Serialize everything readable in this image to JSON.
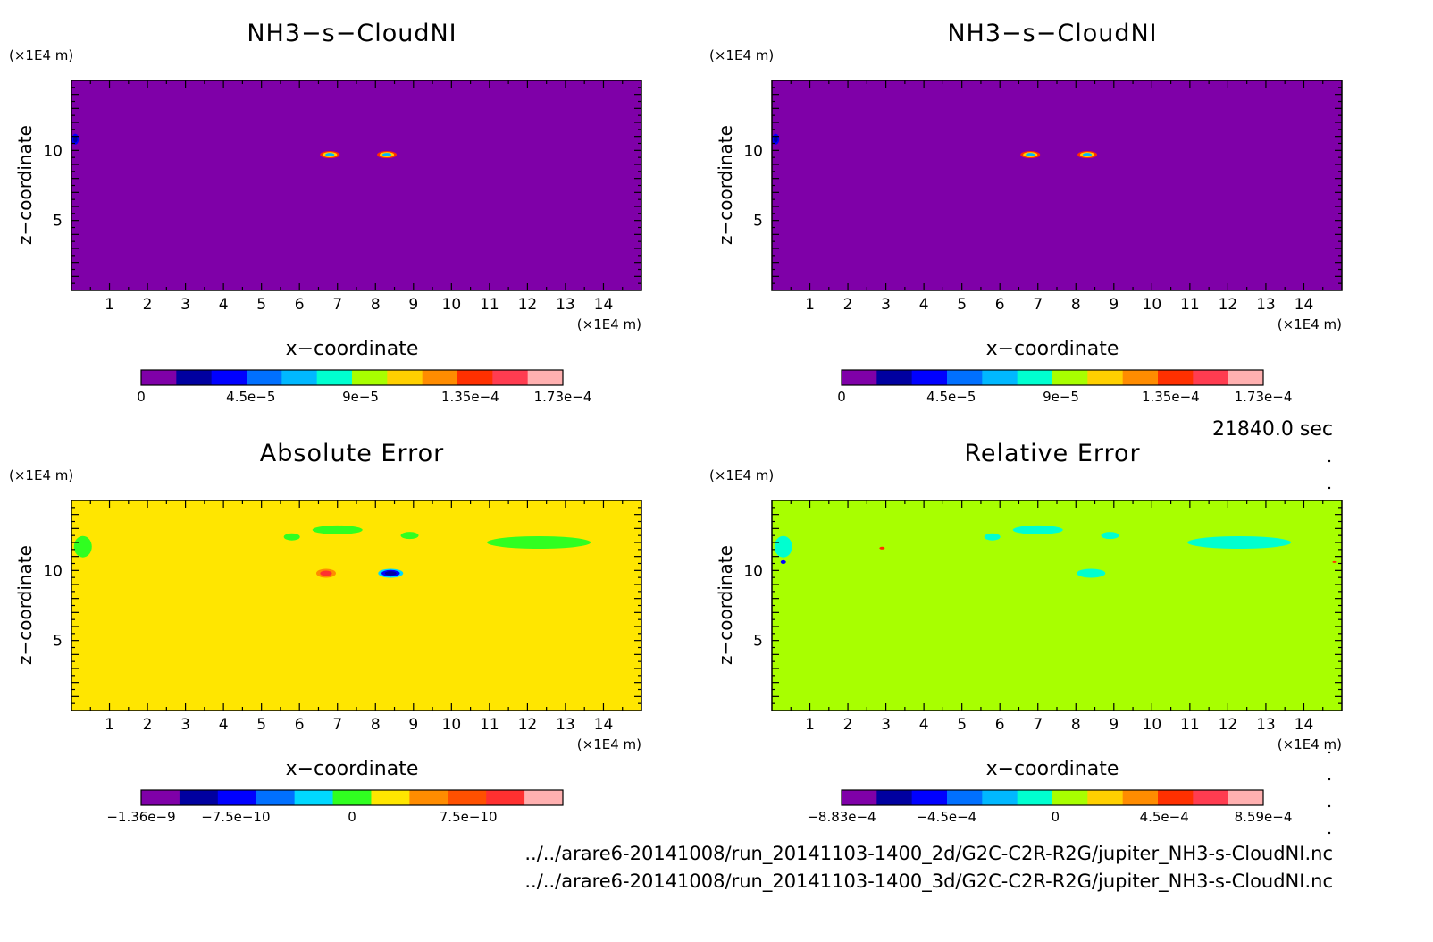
{
  "time_label": "21840.0 sec",
  "files": [
    "../../arare6-20141008/run_20141103-1400_2d/G2C-C2R-R2G/jupiter_NH3-s-CloudNI.nc",
    "../../arare6-20141008/run_20141103-1400_3d/G2C-C2R-R2G/jupiter_NH3-s-CloudNI.nc"
  ],
  "chart_data": [
    {
      "type": "heatmap",
      "title": "NH3−s−CloudNI",
      "xlabel": "x−coordinate",
      "ylabel": "z−coordinate",
      "x_unit": "(×1E4 m)",
      "y_unit": "(×1E4 m)",
      "xlim": [
        0,
        15
      ],
      "ylim": [
        0,
        15
      ],
      "x_ticks": [
        1,
        2,
        3,
        4,
        5,
        6,
        7,
        8,
        9,
        10,
        11,
        12,
        13,
        14
      ],
      "y_ticks": [
        5,
        10
      ],
      "background": "#7f00a8",
      "features": [
        {
          "x": 6.8,
          "z": 9.7,
          "value": 0.000173
        },
        {
          "x": 8.3,
          "z": 9.7,
          "value": 0.000173
        },
        {
          "x": 0.1,
          "z": 10.8,
          "value": 4.5e-05
        }
      ],
      "colorbar": {
        "min": 0,
        "max": 0.000173,
        "tick_labels": [
          "0",
          "4.5e−5",
          "9e−5",
          "1.35e−4",
          "1.73e−4"
        ],
        "tick_values": [
          0,
          4.5e-05,
          9e-05,
          0.000135,
          0.000173
        ],
        "colors": [
          "#7f00a8",
          "#0000a0",
          "#0000ff",
          "#0070ff",
          "#00b8ff",
          "#00ffd0",
          "#a8ff00",
          "#ffd000",
          "#ff8c00",
          "#ff3000",
          "#ff3c50",
          "#ffb0b0"
        ]
      }
    },
    {
      "type": "heatmap",
      "title": "NH3−s−CloudNI",
      "xlabel": "x−coordinate",
      "ylabel": "z−coordinate",
      "x_unit": "(×1E4 m)",
      "y_unit": "(×1E4 m)",
      "xlim": [
        0,
        15
      ],
      "ylim": [
        0,
        15
      ],
      "x_ticks": [
        1,
        2,
        3,
        4,
        5,
        6,
        7,
        8,
        9,
        10,
        11,
        12,
        13,
        14
      ],
      "y_ticks": [
        5,
        10
      ],
      "background": "#7f00a8",
      "features": [
        {
          "x": 6.8,
          "z": 9.7,
          "value": 0.000173
        },
        {
          "x": 8.3,
          "z": 9.7,
          "value": 0.000173
        },
        {
          "x": 0.1,
          "z": 10.8,
          "value": 4.5e-05
        }
      ],
      "colorbar": {
        "min": 0,
        "max": 0.000173,
        "tick_labels": [
          "0",
          "4.5e−5",
          "9e−5",
          "1.35e−4",
          "1.73e−4"
        ],
        "tick_values": [
          0,
          4.5e-05,
          9e-05,
          0.000135,
          0.000173
        ],
        "colors": [
          "#7f00a8",
          "#0000a0",
          "#0000ff",
          "#0070ff",
          "#00b8ff",
          "#00ffd0",
          "#a8ff00",
          "#ffd000",
          "#ff8c00",
          "#ff3000",
          "#ff3c50",
          "#ffb0b0"
        ]
      }
    },
    {
      "type": "heatmap",
      "title": "Absolute Error",
      "xlabel": "x−coordinate",
      "ylabel": "z−coordinate",
      "x_unit": "(×1E4 m)",
      "y_unit": "(×1E4 m)",
      "xlim": [
        0,
        15
      ],
      "ylim": [
        0,
        15
      ],
      "x_ticks": [
        1,
        2,
        3,
        4,
        5,
        6,
        7,
        8,
        9,
        10,
        11,
        12,
        13,
        14
      ],
      "y_ticks": [
        5,
        10
      ],
      "background": "#ffe600",
      "features": [
        {
          "x": 6.7,
          "z": 9.8,
          "value": 1.2e-09
        },
        {
          "x": 8.4,
          "z": 9.8,
          "value": -1.36e-09
        },
        {
          "x": 12.3,
          "z": 12.0,
          "value": -3e-10
        },
        {
          "x": 7.0,
          "z": 12.9,
          "value": -3e-10
        }
      ],
      "colorbar": {
        "min": -1.36e-09,
        "max": 1.36e-09,
        "tick_labels": [
          "−1.36e−9",
          "−7.5e−10",
          "0",
          "7.5e−10"
        ],
        "tick_values": [
          -1.36e-09,
          -7.5e-10,
          0,
          7.5e-10
        ],
        "colors": [
          "#7f00a8",
          "#0000a0",
          "#0000ff",
          "#0070ff",
          "#00d8ff",
          "#30ff20",
          "#ffe600",
          "#ff8c00",
          "#ff5000",
          "#ff3030",
          "#ffb0b0"
        ]
      }
    },
    {
      "type": "heatmap",
      "title": "Relative Error",
      "xlabel": "x−coordinate",
      "ylabel": "z−coordinate",
      "x_unit": "(×1E4 m)",
      "y_unit": "(×1E4 m)",
      "xlim": [
        0,
        15
      ],
      "ylim": [
        0,
        15
      ],
      "x_ticks": [
        1,
        2,
        3,
        4,
        5,
        6,
        7,
        8,
        9,
        10,
        11,
        12,
        13,
        14
      ],
      "y_ticks": [
        5,
        10
      ],
      "background": "#a8ff00",
      "features": [
        {
          "x": 12.3,
          "z": 12.0,
          "value": -0.0002
        },
        {
          "x": 7.0,
          "z": 12.9,
          "value": -0.0002
        },
        {
          "x": 8.4,
          "z": 9.8,
          "value": -0.0002
        },
        {
          "x": 2.9,
          "z": 11.6,
          "value": 0.000859
        }
      ],
      "colorbar": {
        "min": -0.000883,
        "max": 0.000859,
        "tick_labels": [
          "−8.83e−4",
          "−4.5e−4",
          "0",
          "4.5e−4",
          "8.59e−4"
        ],
        "tick_values": [
          -0.000883,
          -0.00045,
          0,
          0.00045,
          0.000859
        ],
        "colors": [
          "#7f00a8",
          "#0000a0",
          "#0000ff",
          "#0070ff",
          "#00b8ff",
          "#00ffd0",
          "#a8ff00",
          "#ffd000",
          "#ff8c00",
          "#ff3000",
          "#ff3c50",
          "#ffb0b0"
        ]
      }
    }
  ]
}
